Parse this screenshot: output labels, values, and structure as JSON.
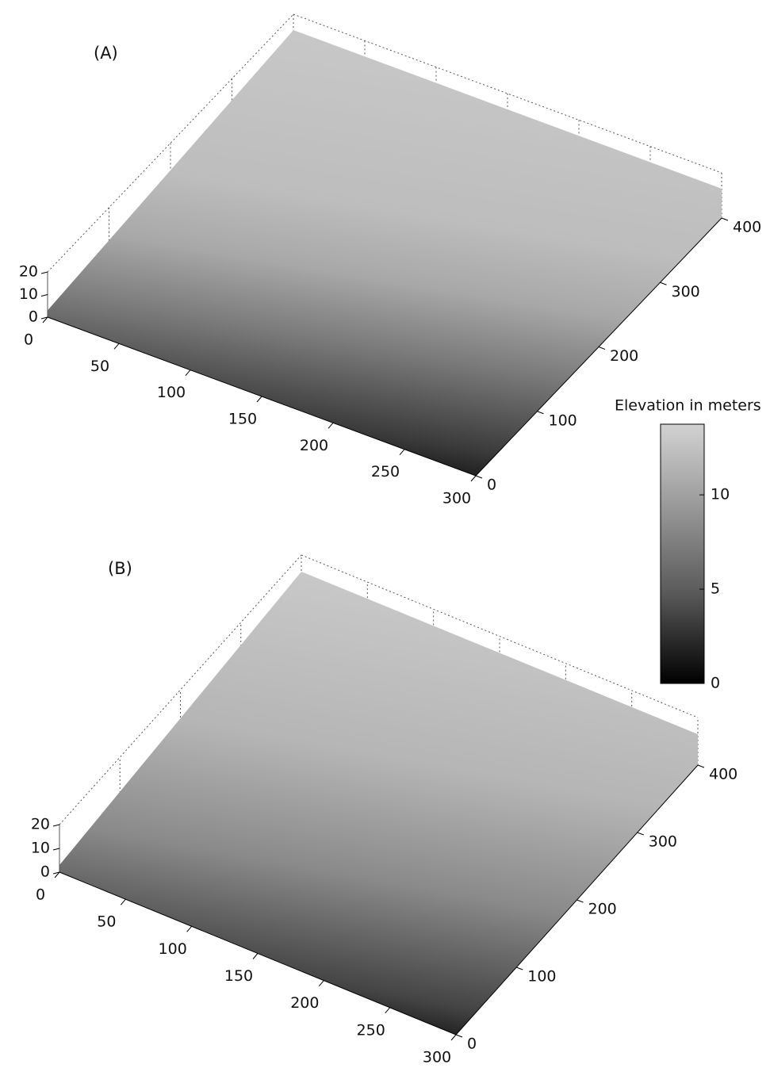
{
  "chart_data": [
    {
      "type": "surface",
      "title": "(A)",
      "xlim": [
        0,
        300
      ],
      "xticks": [
        0,
        50,
        100,
        150,
        200,
        250,
        300
      ],
      "ylim": [
        0,
        400
      ],
      "yticks": [
        0,
        100,
        200,
        300,
        400
      ],
      "zlim": [
        0,
        20
      ],
      "zticks": [
        0,
        10,
        20
      ]
    },
    {
      "type": "surface",
      "title": "(B)",
      "xlim": [
        0,
        300
      ],
      "xticks": [
        0,
        50,
        100,
        150,
        200,
        250,
        300
      ],
      "ylim": [
        0,
        400
      ],
      "yticks": [
        0,
        100,
        200,
        300,
        400
      ],
      "zlim": [
        0,
        20
      ],
      "zticks": [
        0,
        10,
        20
      ]
    }
  ],
  "colorbar": {
    "title": "Elevation in meters",
    "clim": [
      0,
      14
    ],
    "ticks": [
      0,
      5,
      10
    ]
  }
}
